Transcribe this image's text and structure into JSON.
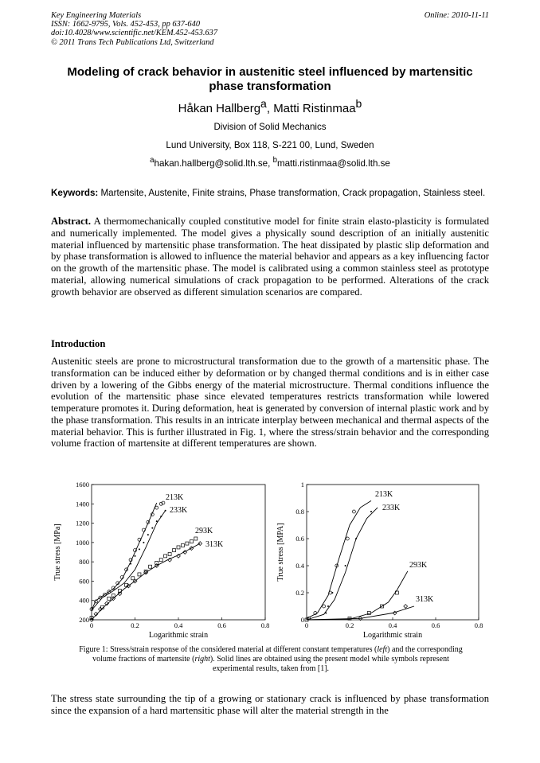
{
  "header": {
    "journal": "Key Engineering Materials",
    "issn": "ISSN: 1662-9795, Vols. 452-453, pp 637-640",
    "doi": "doi:10.4028/www.scientific.net/KEM.452-453.637",
    "copyright": "© 2011 Trans Tech Publications Ltd, Switzerland",
    "online": "Online: 2010-11-11"
  },
  "title": "Modeling of crack behavior in austenitic steel influenced by martensitic phase transformation",
  "authors": {
    "a1": "Håkan Hallberg",
    "s1": "a",
    "sep": ", ",
    "a2": "Matti Ristinmaa",
    "s2": "b"
  },
  "affiliation": {
    "division": "Division of Solid Mechanics",
    "address": "Lund University, Box 118, S-221 00, Lund, Sweden"
  },
  "emails": {
    "s1": "a",
    "e1": "hakan.hallberg@solid.lth.se",
    "sep": ", ",
    "s2": "b",
    "e2": "matti.ristinmaa@solid.lth.se"
  },
  "keywords": {
    "label": "Keywords:",
    "text": " Martensite, Austenite, Finite strains, Phase transformation, Crack propagation, Stainless steel."
  },
  "abstract": {
    "label": "Abstract.",
    "text": " A thermomechanically coupled constitutive model for finite strain elasto-plasticity is formulated and numerically implemented. The model gives a physically sound description of an initially austenitic material influenced by martensitic phase transformation. The heat dissipated by plastic slip deformation and by phase transformation is allowed to influence the material behavior and appears as a key influencing factor on the growth of the martensitic phase. The model is calibrated using a common stainless steel as prototype material, allowing numerical simulations of crack propagation to be performed. Alterations of the crack growth behavior are observed as different simulation scenarios are compared."
  },
  "introduction": {
    "heading": "Introduction",
    "text": "Austenitic steels are prone to microstructural transformation due to the growth of a martensitic phase. The transformation can be induced either by deformation or by changed thermal conditions and is in either case driven by a lowering of the Gibbs energy of the material microstructure. Thermal conditions influence the evolution of the martensitic phase since elevated temperatures restricts transformation while lowered temperature promotes it. During deformation, heat is generated by conversion of internal plastic work and by the phase transformation. This results in an intricate interplay between mechanical and thermal aspects of the material behavior. This is further illustrated in Fig. 1, where the stress/strain behavior and the corresponding volume fraction of martensite at different temperatures are shown."
  },
  "caption": {
    "p1": "Figure 1: Stress/strain response of the considered material at different constant temperatures (",
    "i1": "left",
    "p2": ") and the corresponding volume fractions of martensite (",
    "i2": "right",
    "p3": "). Solid lines are obtained using the present model while symbols represent experimental results, taken from [1]."
  },
  "closing_text": "The stress state surrounding the tip of a growing or stationary crack is influenced by phase transformation since the expansion of a hard martensitic phase will alter the material strength in the",
  "chart_data": [
    {
      "type": "line",
      "xlabel": "Logarithmic strain",
      "ylabel": "True stress [MPa]",
      "xlim": [
        0,
        0.8
      ],
      "ylim": [
        200,
        1600
      ],
      "xticks": [
        "0",
        "0.2",
        "0.4",
        "0.6",
        "0.8"
      ],
      "yticks": [
        "200",
        "400",
        "600",
        "800",
        "1000",
        "1200",
        "1400",
        "1600"
      ],
      "series": [
        {
          "name": "213K",
          "marker": "circle",
          "line": [
            [
              0,
              300
            ],
            [
              0.02,
              400
            ],
            [
              0.06,
              460
            ],
            [
              0.1,
              520
            ],
            [
              0.14,
              620
            ],
            [
              0.18,
              800
            ],
            [
              0.22,
              1000
            ],
            [
              0.26,
              1200
            ],
            [
              0.3,
              1410
            ]
          ],
          "points": [
            [
              0,
              310
            ],
            [
              0.02,
              390
            ],
            [
              0.04,
              430
            ],
            [
              0.06,
              460
            ],
            [
              0.08,
              490
            ],
            [
              0.1,
              530
            ],
            [
              0.12,
              580
            ],
            [
              0.14,
              640
            ],
            [
              0.16,
              720
            ],
            [
              0.18,
              820
            ],
            [
              0.2,
              920
            ],
            [
              0.22,
              1030
            ],
            [
              0.24,
              1130
            ],
            [
              0.26,
              1210
            ],
            [
              0.28,
              1290
            ],
            [
              0.3,
              1360
            ],
            [
              0.32,
              1400
            ],
            [
              0.33,
              1410
            ]
          ]
        },
        {
          "name": "233K",
          "marker": "dot",
          "line": [
            [
              0,
              300
            ],
            [
              0.05,
              430
            ],
            [
              0.1,
              500
            ],
            [
              0.15,
              580
            ],
            [
              0.2,
              720
            ],
            [
              0.25,
              950
            ],
            [
              0.3,
              1200
            ],
            [
              0.34,
              1330
            ]
          ],
          "points": [
            [
              0.18,
              780
            ],
            [
              0.2,
              860
            ],
            [
              0.22,
              930
            ],
            [
              0.24,
              1000
            ],
            [
              0.26,
              1080
            ],
            [
              0.28,
              1150
            ],
            [
              0.3,
              1220
            ],
            [
              0.32,
              1270
            ],
            [
              0.34,
              1330
            ]
          ]
        },
        {
          "name": "293K",
          "marker": "square",
          "line": [],
          "points": [
            [
              0,
              220
            ],
            [
              0.05,
              330
            ],
            [
              0.08,
              420
            ],
            [
              0.1,
              450
            ],
            [
              0.13,
              500
            ],
            [
              0.16,
              560
            ],
            [
              0.19,
              630
            ],
            [
              0.22,
              670
            ],
            [
              0.25,
              700
            ],
            [
              0.27,
              750
            ],
            [
              0.3,
              790
            ],
            [
              0.32,
              820
            ],
            [
              0.34,
              860
            ],
            [
              0.36,
              880
            ],
            [
              0.38,
              920
            ],
            [
              0.4,
              950
            ],
            [
              0.42,
              970
            ],
            [
              0.44,
              990
            ],
            [
              0.46,
              1010
            ],
            [
              0.48,
              1040
            ]
          ]
        },
        {
          "name": "313K",
          "marker": "diamond",
          "line": [
            [
              0,
              200
            ],
            [
              0.05,
              320
            ],
            [
              0.1,
              420
            ],
            [
              0.15,
              520
            ],
            [
              0.2,
              600
            ],
            [
              0.25,
              690
            ],
            [
              0.3,
              760
            ],
            [
              0.35,
              820
            ],
            [
              0.4,
              870
            ],
            [
              0.45,
              930
            ],
            [
              0.5,
              990
            ]
          ],
          "points": [
            [
              0,
              200
            ],
            [
              0.02,
              260
            ],
            [
              0.04,
              310
            ],
            [
              0.07,
              370
            ],
            [
              0.1,
              420
            ],
            [
              0.13,
              470
            ],
            [
              0.17,
              550
            ],
            [
              0.2,
              600
            ],
            [
              0.25,
              690
            ],
            [
              0.3,
              760
            ],
            [
              0.36,
              820
            ],
            [
              0.4,
              860
            ],
            [
              0.43,
              900
            ],
            [
              0.46,
              940
            ],
            [
              0.5,
              990
            ]
          ]
        }
      ]
    },
    {
      "type": "line",
      "xlabel": "Logarithmic strain",
      "ylabel": "True stress [MPA]",
      "xlim": [
        0,
        0.8
      ],
      "ylim": [
        0,
        1
      ],
      "xticks": [
        "0",
        "0.2",
        "0.4",
        "0.6",
        "0.8"
      ],
      "yticks": [
        "0",
        "0.2",
        "0.4",
        "0.6",
        "0.8",
        "1"
      ],
      "series": [
        {
          "name": "213K",
          "marker": "circle",
          "line": [
            [
              0,
              0.01
            ],
            [
              0.05,
              0.05
            ],
            [
              0.1,
              0.18
            ],
            [
              0.15,
              0.45
            ],
            [
              0.2,
              0.7
            ],
            [
              0.25,
              0.83
            ],
            [
              0.3,
              0.88
            ]
          ],
          "points": [
            [
              0.01,
              0.01
            ],
            [
              0.04,
              0.05
            ],
            [
              0.08,
              0.1
            ],
            [
              0.11,
              0.2
            ],
            [
              0.14,
              0.4
            ],
            [
              0.19,
              0.6
            ],
            [
              0.22,
              0.8
            ]
          ]
        },
        {
          "name": "233K",
          "marker": "dot",
          "line": [
            [
              0,
              0
            ],
            [
              0.08,
              0.04
            ],
            [
              0.13,
              0.15
            ],
            [
              0.18,
              0.35
            ],
            [
              0.23,
              0.6
            ],
            [
              0.28,
              0.75
            ],
            [
              0.33,
              0.83
            ]
          ],
          "points": [
            [
              0.09,
              0.05
            ],
            [
              0.1,
              0.1
            ],
            [
              0.12,
              0.2
            ],
            [
              0.18,
              0.4
            ],
            [
              0.23,
              0.6
            ],
            [
              0.3,
              0.8
            ]
          ]
        },
        {
          "name": "293K",
          "marker": "square",
          "line": [
            [
              0,
              0
            ],
            [
              0.2,
              0.005
            ],
            [
              0.3,
              0.05
            ],
            [
              0.38,
              0.13
            ],
            [
              0.42,
              0.22
            ],
            [
              0.47,
              0.36
            ]
          ],
          "points": [
            [
              0,
              0
            ],
            [
              0.2,
              0.01
            ],
            [
              0.29,
              0.05
            ],
            [
              0.35,
              0.1
            ],
            [
              0.42,
              0.2
            ]
          ]
        },
        {
          "name": "313K",
          "marker": "diamond",
          "line": [
            [
              0,
              0
            ],
            [
              0.25,
              0.01
            ],
            [
              0.4,
              0.05
            ],
            [
              0.5,
              0.1
            ]
          ],
          "points": [
            [
              0.25,
              0.01
            ],
            [
              0.41,
              0.05
            ],
            [
              0.46,
              0.1
            ]
          ]
        }
      ]
    }
  ]
}
